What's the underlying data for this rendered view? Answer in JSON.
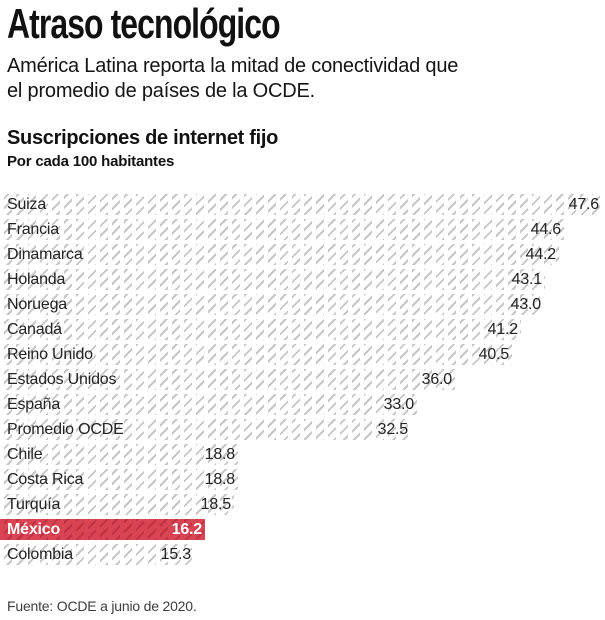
{
  "header": {
    "title": "Atraso tecnológico",
    "subtitle_lines": [
      "América Latina reporta la mitad de conectividad que",
      "el promedio de países de la OCDE."
    ]
  },
  "chart_data": {
    "type": "bar",
    "title": "Suscripciones de internet fijo",
    "subtitle": "Por cada 100 habitantes",
    "orientation": "horizontal",
    "xlim": [
      0,
      47.6
    ],
    "grid": false,
    "legend": false,
    "categories": [
      "Suiza",
      "Francia",
      "Dinamarca",
      "Holanda",
      "Noruega",
      "Canadá",
      "Reino Unido",
      "Estados Unidos",
      "España",
      "Promedio OCDE",
      "Chile",
      "Costa Rica",
      "Turquía",
      "México",
      "Colombia"
    ],
    "values": [
      47.6,
      44.6,
      44.2,
      43.1,
      43.0,
      41.2,
      40.5,
      36.0,
      33.0,
      32.5,
      18.8,
      18.8,
      18.5,
      16.2,
      15.3
    ],
    "value_labels": [
      "47.6",
      "44.6",
      "44.2",
      "43.1",
      "43.0",
      "41.2",
      "40.5",
      "36.0",
      "33.0",
      "32.5",
      "18.8",
      "18.8",
      "18.5",
      "16.2",
      "15.3"
    ],
    "highlighted_category": "México"
  },
  "footer": {
    "source": "Fuente: OCDE a junio de 2020."
  },
  "colors": {
    "highlight": "#d94452",
    "highlight_hatch": "#bf3040",
    "hatch_gray": "#c6c6c6",
    "text": "#1a1a1a"
  }
}
